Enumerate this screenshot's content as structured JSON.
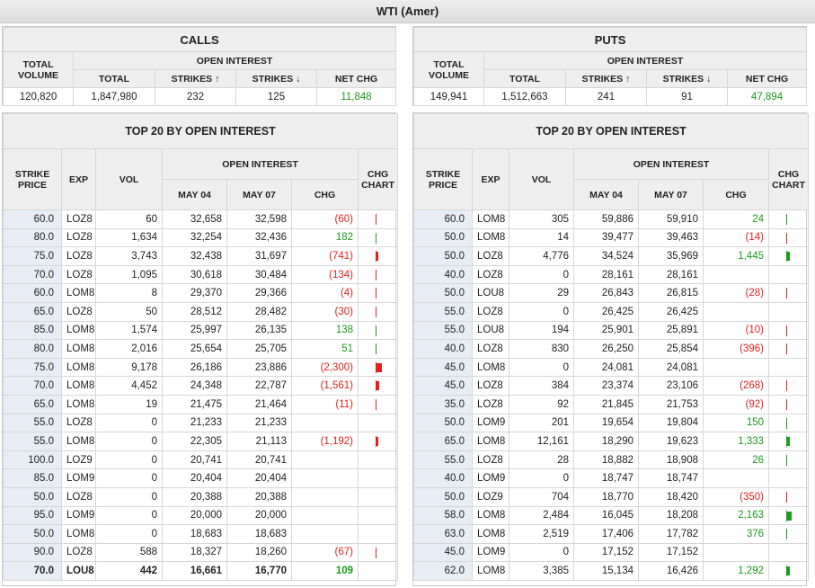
{
  "title": "WTI (Amer)",
  "colors": {
    "positive": "#1b9a1b",
    "negative": "#e32020",
    "strike_bg": "#e8edf5",
    "header_bg": "#eeeeee"
  },
  "headers": {
    "total_volume": "TOTAL VOLUME",
    "open_interest": "OPEN INTEREST",
    "total": "TOTAL",
    "strikes_up": "STRIKES ↑",
    "strikes_down": "STRIKES ↓",
    "net_chg": "NET CHG",
    "top20": "TOP 20 BY OPEN INTEREST",
    "strike_price": "STRIKE PRICE",
    "exp": "EXP",
    "vol": "VOL",
    "may04": "MAY 04",
    "may07": "MAY 07",
    "chg": "CHG",
    "chg_chart": "CHG CHART"
  },
  "calls": {
    "label": "CALLS",
    "summary": {
      "total_volume": "120,820",
      "total": "1,847,980",
      "strikes_up": "232",
      "strikes_down": "125",
      "net_chg": "11,848"
    },
    "rows": [
      {
        "strike": "60.0",
        "exp": "LOZ8",
        "vol": "60",
        "may04": "32,658",
        "may07": "32,598",
        "chg": "(60)",
        "dir": "neg",
        "mag": 0.01
      },
      {
        "strike": "80.0",
        "exp": "LOZ8",
        "vol": "1,634",
        "may04": "32,254",
        "may07": "32,436",
        "chg": "182",
        "dir": "pos",
        "mag": 0.02
      },
      {
        "strike": "75.0",
        "exp": "LOZ8",
        "vol": "3,743",
        "may04": "32,438",
        "may07": "31,697",
        "chg": "(741)",
        "dir": "neg",
        "mag": 0.04
      },
      {
        "strike": "70.0",
        "exp": "LOZ8",
        "vol": "1,095",
        "may04": "30,618",
        "may07": "30,484",
        "chg": "(134)",
        "dir": "neg",
        "mag": 0.01
      },
      {
        "strike": "60.0",
        "exp": "LOM8",
        "vol": "8",
        "may04": "29,370",
        "may07": "29,366",
        "chg": "(4)",
        "dir": "neg",
        "mag": 0.005
      },
      {
        "strike": "65.0",
        "exp": "LOZ8",
        "vol": "50",
        "may04": "28,512",
        "may07": "28,482",
        "chg": "(30)",
        "dir": "neg",
        "mag": 0.005
      },
      {
        "strike": "85.0",
        "exp": "LOM8",
        "vol": "1,574",
        "may04": "25,997",
        "may07": "26,135",
        "chg": "138",
        "dir": "pos",
        "mag": 0.005
      },
      {
        "strike": "80.0",
        "exp": "LOM8",
        "vol": "2,016",
        "may04": "25,654",
        "may07": "25,705",
        "chg": "51",
        "dir": "pos",
        "mag": 0.005
      },
      {
        "strike": "75.0",
        "exp": "LOM8",
        "vol": "9,178",
        "may04": "26,186",
        "may07": "23,886",
        "chg": "(2,300)",
        "dir": "neg",
        "mag": 0.1
      },
      {
        "strike": "70.0",
        "exp": "LOM8",
        "vol": "4,452",
        "may04": "24,348",
        "may07": "22,787",
        "chg": "(1,561)",
        "dir": "neg",
        "mag": 0.06
      },
      {
        "strike": "65.0",
        "exp": "LOM8",
        "vol": "19",
        "may04": "21,475",
        "may07": "21,464",
        "chg": "(11)",
        "dir": "neg",
        "mag": 0.005
      },
      {
        "strike": "55.0",
        "exp": "LOZ8",
        "vol": "0",
        "may04": "21,233",
        "may07": "21,233",
        "chg": "",
        "dir": "none",
        "mag": 0
      },
      {
        "strike": "55.0",
        "exp": "LOM8",
        "vol": "0",
        "may04": "22,305",
        "may07": "21,113",
        "chg": "(1,192)",
        "dir": "neg",
        "mag": 0.04
      },
      {
        "strike": "100.0",
        "exp": "LOZ9",
        "vol": "0",
        "may04": "20,741",
        "may07": "20,741",
        "chg": "",
        "dir": "none",
        "mag": 0
      },
      {
        "strike": "85.0",
        "exp": "LOM9",
        "vol": "0",
        "may04": "20,404",
        "may07": "20,404",
        "chg": "",
        "dir": "none",
        "mag": 0
      },
      {
        "strike": "50.0",
        "exp": "LOZ8",
        "vol": "0",
        "may04": "20,388",
        "may07": "20,388",
        "chg": "",
        "dir": "none",
        "mag": 0
      },
      {
        "strike": "95.0",
        "exp": "LOM9",
        "vol": "0",
        "may04": "20,000",
        "may07": "20,000",
        "chg": "",
        "dir": "none",
        "mag": 0
      },
      {
        "strike": "50.0",
        "exp": "LOM8",
        "vol": "0",
        "may04": "18,683",
        "may07": "18,683",
        "chg": "",
        "dir": "none",
        "mag": 0
      },
      {
        "strike": "90.0",
        "exp": "LOZ8",
        "vol": "588",
        "may04": "18,327",
        "may07": "18,260",
        "chg": "(67)",
        "dir": "neg",
        "mag": 0.005
      },
      {
        "strike": "70.0",
        "exp": "LOU8",
        "vol": "442",
        "may04": "16,661",
        "may07": "16,770",
        "chg": "109",
        "dir": "pos",
        "mag": 0,
        "bold": true
      }
    ]
  },
  "puts": {
    "label": "PUTS",
    "summary": {
      "total_volume": "149,941",
      "total": "1,512,663",
      "strikes_up": "241",
      "strikes_down": "91",
      "net_chg": "47,894"
    },
    "rows": [
      {
        "strike": "60.0",
        "exp": "LOM8",
        "vol": "305",
        "may04": "59,886",
        "may07": "59,910",
        "chg": "24",
        "dir": "pos",
        "mag": 0.005
      },
      {
        "strike": "50.0",
        "exp": "LOM8",
        "vol": "14",
        "may04": "39,477",
        "may07": "39,463",
        "chg": "(14)",
        "dir": "neg",
        "mag": 0.005
      },
      {
        "strike": "50.0",
        "exp": "LOZ8",
        "vol": "4,776",
        "may04": "34,524",
        "may07": "35,969",
        "chg": "1,445",
        "dir": "pos",
        "mag": 0.06
      },
      {
        "strike": "40.0",
        "exp": "LOZ8",
        "vol": "0",
        "may04": "28,161",
        "may07": "28,161",
        "chg": "",
        "dir": "none",
        "mag": 0
      },
      {
        "strike": "50.0",
        "exp": "LOU8",
        "vol": "29",
        "may04": "26,843",
        "may07": "26,815",
        "chg": "(28)",
        "dir": "neg",
        "mag": 0.005
      },
      {
        "strike": "55.0",
        "exp": "LOZ8",
        "vol": "0",
        "may04": "26,425",
        "may07": "26,425",
        "chg": "",
        "dir": "none",
        "mag": 0
      },
      {
        "strike": "55.0",
        "exp": "LOU8",
        "vol": "194",
        "may04": "25,901",
        "may07": "25,891",
        "chg": "(10)",
        "dir": "neg",
        "mag": 0.005
      },
      {
        "strike": "40.0",
        "exp": "LOZ8",
        "vol": "830",
        "may04": "26,250",
        "may07": "25,854",
        "chg": "(396)",
        "dir": "neg",
        "mag": 0.01
      },
      {
        "strike": "45.0",
        "exp": "LOM8",
        "vol": "0",
        "may04": "24,081",
        "may07": "24,081",
        "chg": "",
        "dir": "none",
        "mag": 0
      },
      {
        "strike": "45.0",
        "exp": "LOZ8",
        "vol": "384",
        "may04": "23,374",
        "may07": "23,106",
        "chg": "(268)",
        "dir": "neg",
        "mag": 0.01
      },
      {
        "strike": "35.0",
        "exp": "LOZ8",
        "vol": "92",
        "may04": "21,845",
        "may07": "21,753",
        "chg": "(92)",
        "dir": "neg",
        "mag": 0.005
      },
      {
        "strike": "50.0",
        "exp": "LOM9",
        "vol": "201",
        "may04": "19,654",
        "may07": "19,804",
        "chg": "150",
        "dir": "pos",
        "mag": 0.005
      },
      {
        "strike": "65.0",
        "exp": "LOM8",
        "vol": "12,161",
        "may04": "18,290",
        "may07": "19,623",
        "chg": "1,333",
        "dir": "pos",
        "mag": 0.05
      },
      {
        "strike": "55.0",
        "exp": "LOZ8",
        "vol": "28",
        "may04": "18,882",
        "may07": "18,908",
        "chg": "26",
        "dir": "pos",
        "mag": 0.005
      },
      {
        "strike": "40.0",
        "exp": "LOM9",
        "vol": "0",
        "may04": "18,747",
        "may07": "18,747",
        "chg": "",
        "dir": "none",
        "mag": 0
      },
      {
        "strike": "50.0",
        "exp": "LOZ9",
        "vol": "704",
        "may04": "18,770",
        "may07": "18,420",
        "chg": "(350)",
        "dir": "neg",
        "mag": 0.005
      },
      {
        "strike": "58.0",
        "exp": "LOM8",
        "vol": "2,484",
        "may04": "16,045",
        "may07": "18,208",
        "chg": "2,163",
        "dir": "pos",
        "mag": 0.08
      },
      {
        "strike": "63.0",
        "exp": "LOM8",
        "vol": "2,519",
        "may04": "17,406",
        "may07": "17,782",
        "chg": "376",
        "dir": "pos",
        "mag": 0.01
      },
      {
        "strike": "45.0",
        "exp": "LOM9",
        "vol": "0",
        "may04": "17,152",
        "may07": "17,152",
        "chg": "",
        "dir": "none",
        "mag": 0
      },
      {
        "strike": "62.0",
        "exp": "LOM8",
        "vol": "3,385",
        "may04": "15,134",
        "may07": "16,426",
        "chg": "1,292",
        "dir": "pos",
        "mag": 0.05
      }
    ]
  }
}
